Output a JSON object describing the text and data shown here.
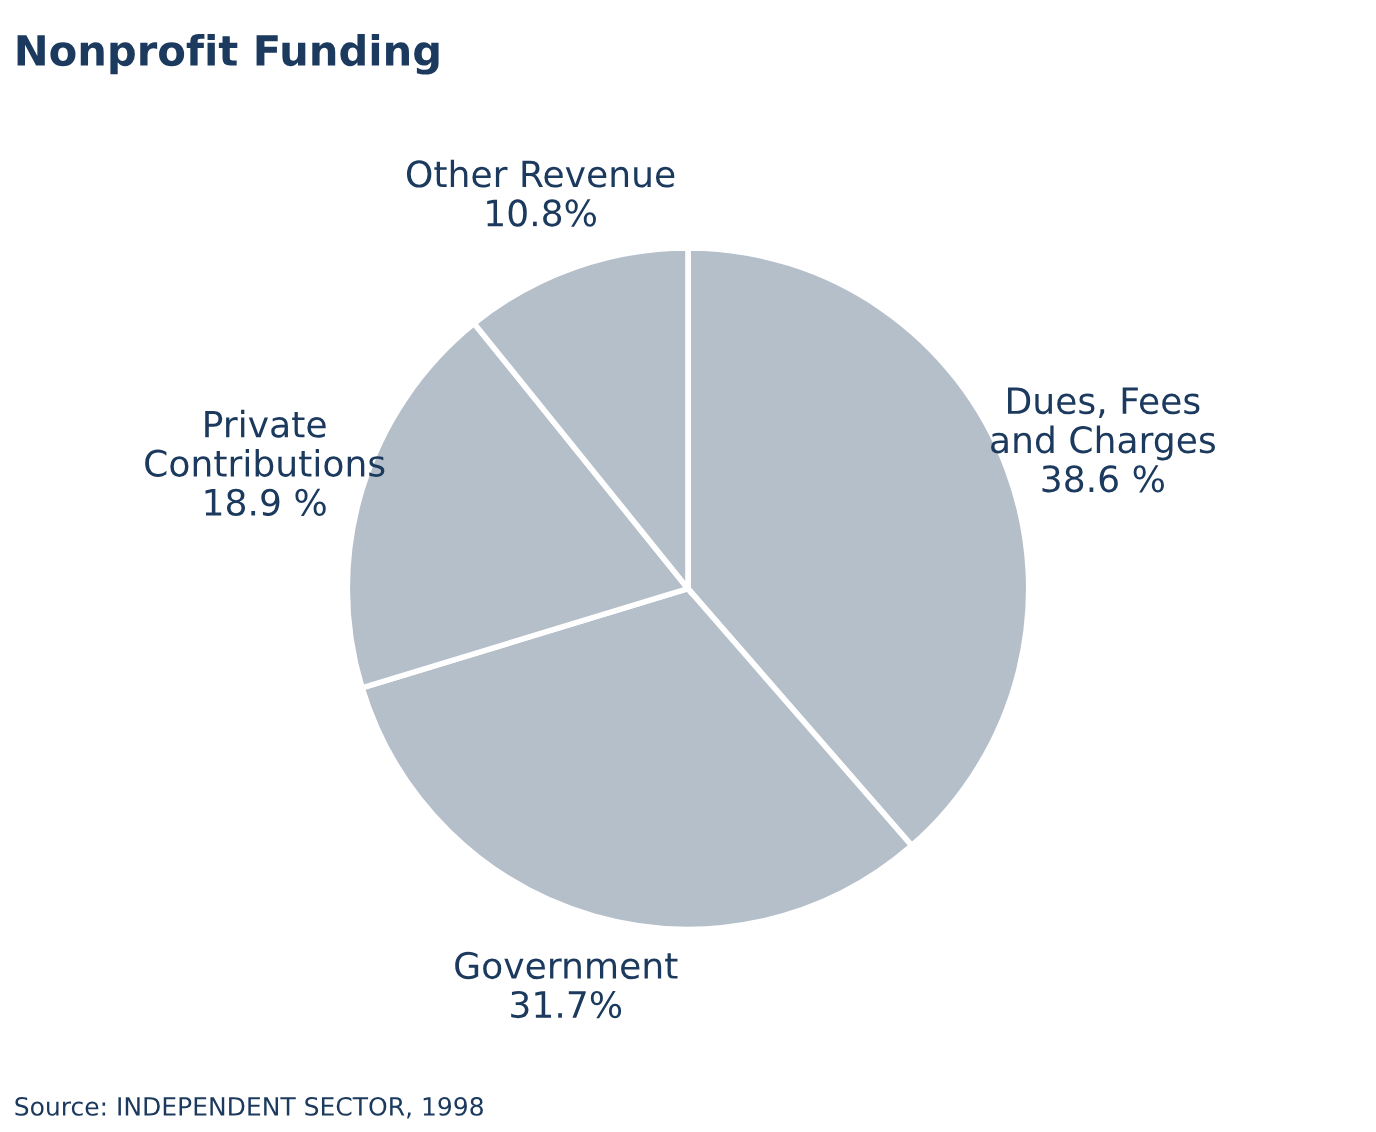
{
  "chart_data": {
    "type": "pie",
    "title": "Nonprofit Funding",
    "categories": [
      "Dues, Fees\nand Charges",
      "Government",
      "Private\nContributions",
      "Other Revenue"
    ],
    "values": [
      38.6,
      31.7,
      18.9,
      10.8
    ],
    "value_labels": [
      "38.6 %",
      "31.7%",
      "18.9 %",
      "10.8%"
    ],
    "colors": [
      "#b4bfca",
      "#b4bfca",
      "#b4bfca",
      "#b4bfca"
    ],
    "annotations": [
      "Source: INDEPENDENT SECTOR, 1998"
    ],
    "legend": false
  }
}
